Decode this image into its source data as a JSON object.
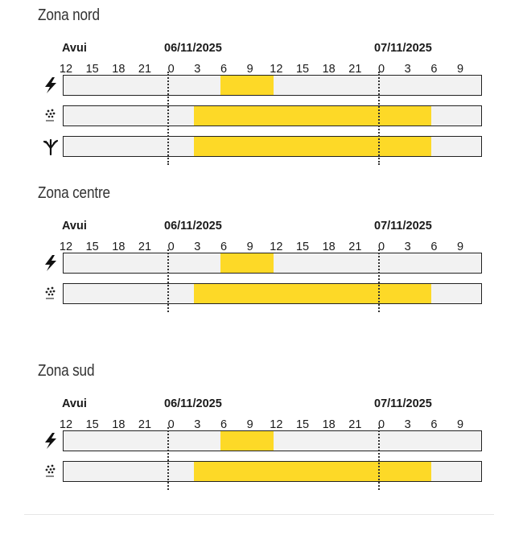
{
  "zones": [
    {
      "title": "Zona nord",
      "date_labels": [
        "Avui",
        "06/11/2025",
        "07/11/2025"
      ],
      "hour_ticks": [
        "12",
        "15",
        "18",
        "21",
        "0",
        "3",
        "6",
        "9",
        "12",
        "15",
        "18",
        "21",
        "0",
        "3",
        "6",
        "9"
      ],
      "rows": [
        {
          "icon": "lightning-icon",
          "highlight_start_hour": 6,
          "highlight_end_hour": 12
        },
        {
          "icon": "rain-icon",
          "highlight_start_hour": 3,
          "highlight_end_hour": 30
        },
        {
          "icon": "tree-wind-icon",
          "highlight_start_hour": 3,
          "highlight_end_hour": 30
        }
      ]
    },
    {
      "title": "Zona centre",
      "date_labels": [
        "Avui",
        "06/11/2025",
        "07/11/2025"
      ],
      "hour_ticks": [
        "12",
        "15",
        "18",
        "21",
        "0",
        "3",
        "6",
        "9",
        "12",
        "15",
        "18",
        "21",
        "0",
        "3",
        "6",
        "9"
      ],
      "rows": [
        {
          "icon": "lightning-icon",
          "highlight_start_hour": 6,
          "highlight_end_hour": 12
        },
        {
          "icon": "rain-icon",
          "highlight_start_hour": 3,
          "highlight_end_hour": 30
        }
      ]
    },
    {
      "title": "Zona sud",
      "date_labels": [
        "Avui",
        "06/11/2025",
        "07/11/2025"
      ],
      "hour_ticks": [
        "12",
        "15",
        "18",
        "21",
        "0",
        "3",
        "6",
        "9",
        "12",
        "15",
        "18",
        "21",
        "0",
        "3",
        "6",
        "9"
      ],
      "rows": [
        {
          "icon": "lightning-icon",
          "highlight_start_hour": 6,
          "highlight_end_hour": 12
        },
        {
          "icon": "rain-icon",
          "highlight_start_hour": 3,
          "highlight_end_hour": 30
        }
      ]
    }
  ],
  "colors": {
    "highlight": "#fdd927",
    "bar_background": "#f2f2f2",
    "bar_border": "#222222"
  }
}
